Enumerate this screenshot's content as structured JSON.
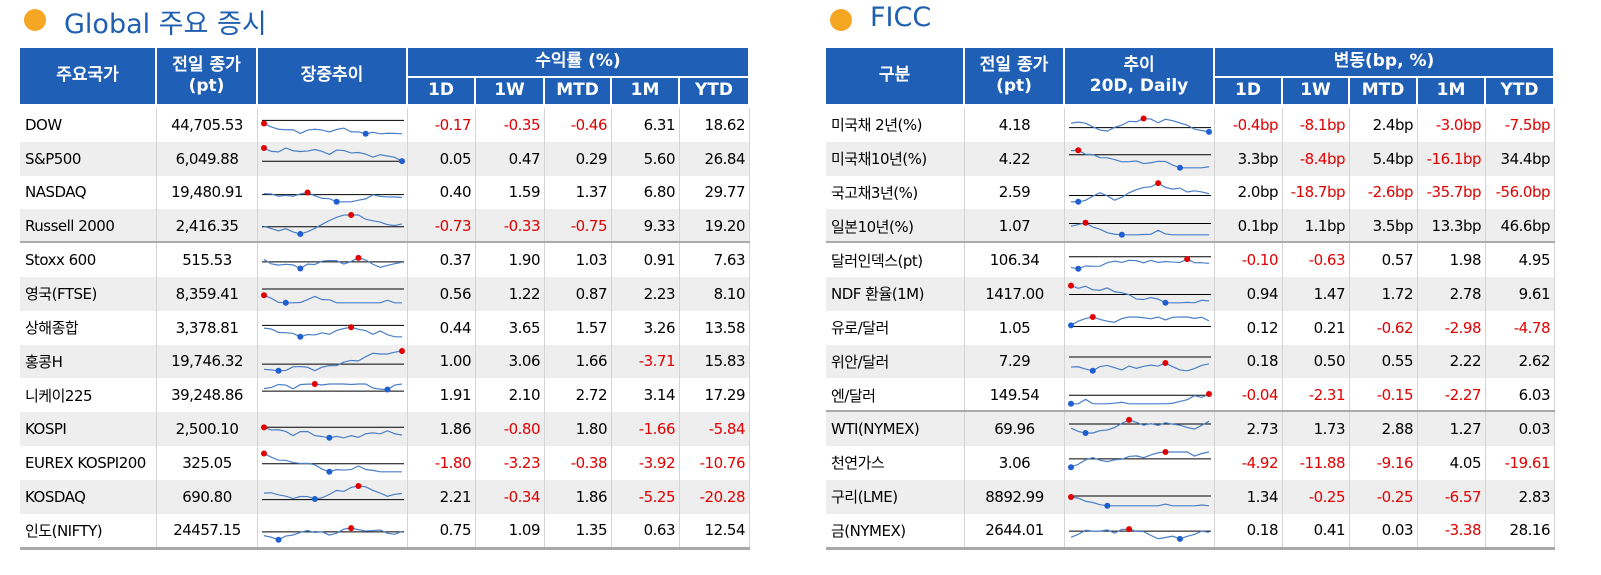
{
  "left": {
    "title": "Global 주요 증시",
    "header": {
      "name": "주요국가",
      "close": [
        "전일 종가",
        "(pt)"
      ],
      "trend": [
        "장중추이"
      ],
      "returns": "수익률 (%)",
      "periods": [
        "1D",
        "1W",
        "MTD",
        "1M",
        "YTD"
      ]
    },
    "groups": [
      [
        [
          "DOW",
          "44,705.53",
          "-0.17",
          "-0.35",
          "-0.46",
          "6.31",
          "18.62"
        ],
        [
          "S&P500",
          "6,049.88",
          "0.05",
          "0.47",
          "0.29",
          "5.60",
          "26.84"
        ],
        [
          "NASDAQ",
          "19,480.91",
          "0.40",
          "1.59",
          "1.37",
          "6.80",
          "29.77"
        ],
        [
          "Russell 2000",
          "2,416.35",
          "-0.73",
          "-0.33",
          "-0.75",
          "9.33",
          "19.20"
        ]
      ],
      [
        [
          "Stoxx 600",
          "515.53",
          "0.37",
          "1.90",
          "1.03",
          "0.91",
          "7.63"
        ],
        [
          "영국(FTSE)",
          "8,359.41",
          "0.56",
          "1.22",
          "0.87",
          "2.23",
          "8.10"
        ],
        [
          "상해종합",
          "3,378.81",
          "0.44",
          "3.65",
          "1.57",
          "3.26",
          "13.58"
        ],
        [
          "홍콩H",
          "19,746.32",
          "1.00",
          "3.06",
          "1.66",
          "-3.71",
          "15.83"
        ],
        [
          "니케이225",
          "39,248.86",
          "1.91",
          "2.10",
          "2.72",
          "3.14",
          "17.29"
        ],
        [
          "KOSPI",
          "2,500.10",
          "1.86",
          "-0.80",
          "1.80",
          "-1.66",
          "-5.84"
        ],
        [
          "EUREX KOSPI200",
          "325.05",
          "-1.80",
          "-3.23",
          "-0.38",
          "-3.92",
          "-10.76"
        ],
        [
          "KOSDAQ",
          "690.80",
          "2.21",
          "-0.34",
          "1.86",
          "-5.25",
          "-20.28"
        ],
        [
          "인도(NIFTY)",
          "24457.15",
          "0.75",
          "1.09",
          "1.35",
          "0.63",
          "12.54"
        ]
      ]
    ]
  },
  "right": {
    "title": "FICC",
    "header": {
      "name": "구분",
      "close": [
        "전일 종가",
        "(pt)"
      ],
      "trend": [
        "추이",
        "20D, Daily"
      ],
      "returns": "변동(bp, %)",
      "periods": [
        "1D",
        "1W",
        "MTD",
        "1M",
        "YTD"
      ]
    },
    "groups": [
      [
        [
          "미국채 2년(%)",
          "4.18",
          "-0.4bp",
          "-8.1bp",
          "2.4bp",
          "-3.0bp",
          "-7.5bp"
        ],
        [
          "미국채10년(%)",
          "4.22",
          "3.3bp",
          "-8.4bp",
          "5.4bp",
          "-16.1bp",
          "34.4bp"
        ],
        [
          "국고채3년(%)",
          "2.59",
          "2.0bp",
          "-18.7bp",
          "-2.6bp",
          "-35.7bp",
          "-56.0bp"
        ],
        [
          "일본10년(%)",
          "1.07",
          "0.1bp",
          "1.1bp",
          "3.5bp",
          "13.3bp",
          "46.6bp"
        ]
      ],
      [
        [
          "달러인덱스(pt)",
          "106.34",
          "-0.10",
          "-0.63",
          "0.57",
          "1.98",
          "4.95"
        ],
        [
          "NDF 환율(1M)",
          "1417.00",
          "0.94",
          "1.47",
          "1.72",
          "2.78",
          "9.61"
        ],
        [
          "유로/달러",
          "1.05",
          "0.12",
          "0.21",
          "-0.62",
          "-2.98",
          "-4.78"
        ],
        [
          "위안/달러",
          "7.29",
          "0.18",
          "0.50",
          "0.55",
          "2.22",
          "2.62"
        ],
        [
          "엔/달러",
          "149.54",
          "-0.04",
          "-2.31",
          "-0.15",
          "-2.27",
          "6.03"
        ]
      ],
      [
        [
          "WTI(NYMEX)",
          "69.96",
          "2.73",
          "1.73",
          "2.88",
          "1.27",
          "0.03"
        ],
        [
          "천연가스",
          "3.06",
          "-4.92",
          "-11.88",
          "-9.16",
          "4.05",
          "-19.61"
        ],
        [
          "구리(LME)",
          "8892.99",
          "1.34",
          "-0.25",
          "-0.25",
          "-6.57",
          "2.83"
        ],
        [
          "금(NYMEX)",
          "2644.01",
          "0.18",
          "0.41",
          "0.03",
          "-3.38",
          "28.16"
        ]
      ]
    ]
  }
}
